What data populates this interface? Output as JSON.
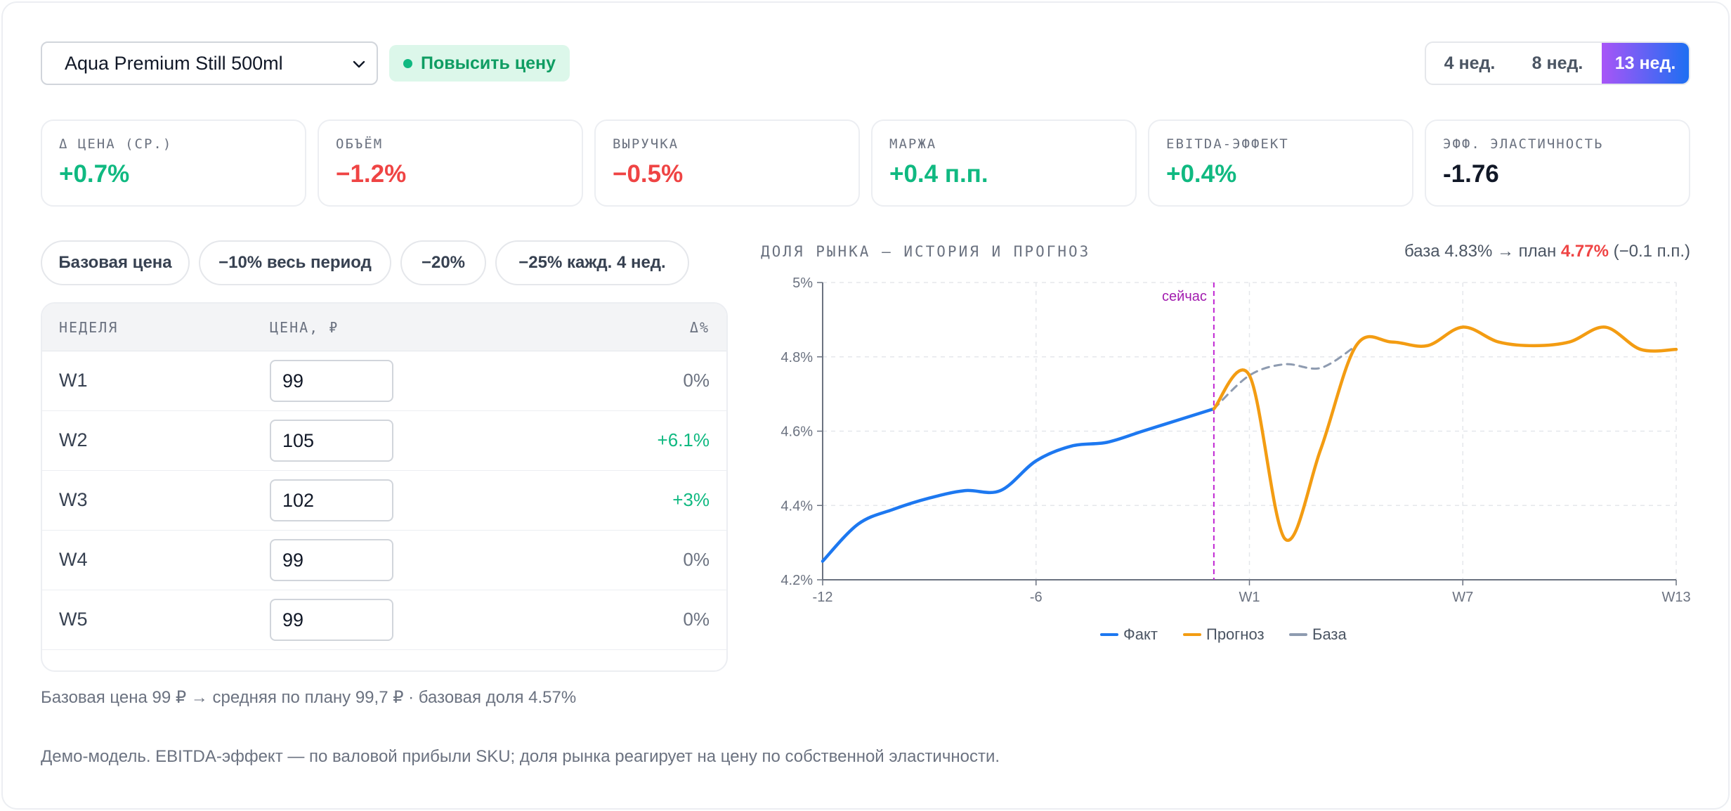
{
  "header": {
    "product": "Aqua Premium Still 500ml",
    "recommendation": "Повысить цену",
    "periods": [
      "4 нед.",
      "8 нед.",
      "13 нед."
    ],
    "active_period": "13 нед."
  },
  "kpis": [
    {
      "label": "Δ ЦЕНА (СР.)",
      "value": "+0.7%",
      "tone": "pos"
    },
    {
      "label": "ОБЪЁМ",
      "value": "−1.2%",
      "tone": "neg"
    },
    {
      "label": "ВЫРУЧКА",
      "value": "−0.5%",
      "tone": "neg"
    },
    {
      "label": "МАРЖА",
      "value": "+0.4 п.п.",
      "tone": "pos"
    },
    {
      "label": "EBITDA-ЭФФЕКТ",
      "value": "+0.4%",
      "tone": "pos"
    },
    {
      "label": "ЭФФ. ЭЛАСТИЧНОСТЬ",
      "value": "-1.76",
      "tone": "neu"
    }
  ],
  "scenarios": [
    "Базовая цена",
    "−10% весь период",
    "−20%",
    "−25% кажд. 4 нед."
  ],
  "table": {
    "headers": {
      "week": "НЕДЕЛЯ",
      "price": "ЦЕНА, ₽",
      "delta": "Δ%"
    },
    "rows": [
      {
        "week": "W1",
        "price": "99",
        "delta": "0%"
      },
      {
        "week": "W2",
        "price": "105",
        "delta": "+6.1%"
      },
      {
        "week": "W3",
        "price": "102",
        "delta": "+3%"
      },
      {
        "week": "W4",
        "price": "99",
        "delta": "0%"
      },
      {
        "week": "W5",
        "price": "99",
        "delta": "0%"
      }
    ]
  },
  "summary": "Базовая цена 99 ₽ → средняя по плану 99,7 ₽ · базовая доля 4.57%",
  "footnote": "Демо-модель. EBITDA-эффект — по валовой прибыли SKU; доля рынка реагирует на цену по собственной эластичности.",
  "chart_header": {
    "title": "ДОЛЯ РЫНКА — ИСТОРИЯ И ПРОГНОЗ",
    "prefix": "база 4.83% → план ",
    "plan": "4.77%",
    "suffix": " (−0.1 п.п.)"
  },
  "chart_data": {
    "type": "line",
    "ylim": [
      4.2,
      5.0
    ],
    "yticks": [
      "4.2%",
      "4.4%",
      "4.6%",
      "4.8%",
      "5%"
    ],
    "ytick_values": [
      4.2,
      4.4,
      4.6,
      4.8,
      5.0
    ],
    "xlim": [
      -12,
      12
    ],
    "xticks": [
      {
        "x": -12,
        "label": "-12"
      },
      {
        "x": -6,
        "label": "-6"
      },
      {
        "x": 0,
        "label": "W1"
      },
      {
        "x": 6,
        "label": "W7"
      },
      {
        "x": 12,
        "label": "W13"
      }
    ],
    "now_x": -1,
    "now_label": "сейчас",
    "grid": true,
    "legend_position": "bottom",
    "series": [
      {
        "name": "Факт",
        "color": "#1d78f0",
        "dashed": false,
        "points": [
          [
            -12,
            4.25
          ],
          [
            -11,
            4.35
          ],
          [
            -10,
            4.39
          ],
          [
            -9,
            4.42
          ],
          [
            -8,
            4.44
          ],
          [
            -7,
            4.44
          ],
          [
            -6,
            4.52
          ],
          [
            -5,
            4.56
          ],
          [
            -4,
            4.57
          ],
          [
            -3,
            4.6
          ],
          [
            -2,
            4.63
          ],
          [
            -1,
            4.66
          ]
        ]
      },
      {
        "name": "Прогноз",
        "color": "#f39c12",
        "dashed": false,
        "points": [
          [
            -1,
            4.66
          ],
          [
            0,
            4.75
          ],
          [
            1,
            4.31
          ],
          [
            2,
            4.55
          ],
          [
            3,
            4.83
          ],
          [
            4,
            4.84
          ],
          [
            5,
            4.83
          ],
          [
            6,
            4.88
          ],
          [
            7,
            4.84
          ],
          [
            8,
            4.83
          ],
          [
            9,
            4.84
          ],
          [
            10,
            4.88
          ],
          [
            11,
            4.82
          ],
          [
            12,
            4.82
          ]
        ]
      },
      {
        "name": "База",
        "color": "#8e9bb0",
        "dashed": true,
        "points": [
          [
            -1,
            4.66
          ],
          [
            0,
            4.75
          ],
          [
            1,
            4.78
          ],
          [
            2,
            4.77
          ],
          [
            3,
            4.83
          ]
        ]
      }
    ]
  }
}
